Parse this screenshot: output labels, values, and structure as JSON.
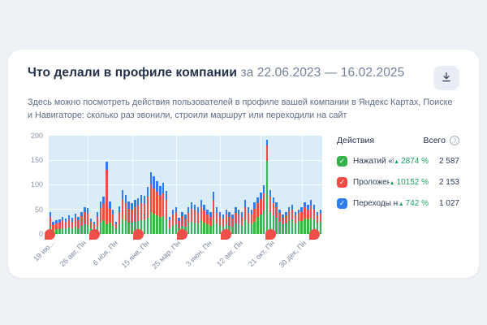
{
  "card": {
    "title": "Что делали в профиле компании",
    "date_range": "за 22.06.2023 — 16.02.2025",
    "subtitle_line1": "Здесь можно посмотреть действия пользователей в профиле вашей компании в Яндекс Картах, Поиске",
    "subtitle_line2": "и Навигаторе: сколько раз звонили, строили маршрут или переходили на сайт"
  },
  "legend": {
    "header_actions": "Действия",
    "header_total": "Всего",
    "items": [
      {
        "label": "Нажатий «Позвонить»",
        "percent": "2874 %",
        "total": "2 587",
        "color": "#36b14a"
      },
      {
        "label": "Проложено маршрутов",
        "percent": "10152 %",
        "total": "2 153",
        "color": "#ee4c45"
      },
      {
        "label": "Переходы на сайт",
        "percent": "742 %",
        "total": "1 027",
        "color": "#2d7df0"
      }
    ]
  },
  "colors": {
    "plot_background": "#daecf8",
    "marker_red": "#ef4f48",
    "trend_green": "#17a35f"
  },
  "chart_data": {
    "type": "bar",
    "stacked": true,
    "title": "",
    "xlabel": "",
    "ylabel": "",
    "ylim": [
      0,
      200
    ],
    "yticks": [
      0,
      50,
      100,
      150,
      200
    ],
    "grid": true,
    "legend_position": "right",
    "xtick_labels": [
      "19 ию...",
      "26 авг, Пн",
      "6 ноя, Пн",
      "15 янв, Пн",
      "25 мар, Пн",
      "3 июн, Пн",
      "12 авг, Пн",
      "21 окт, Пн",
      "30 дек, Пн"
    ],
    "xtick_indices": [
      0,
      10,
      20,
      30,
      40,
      50,
      60,
      70,
      80
    ],
    "vgrid_indices": [
      12,
      26,
      40,
      54,
      67,
      80
    ],
    "marker_indices": [
      0,
      14,
      28,
      42,
      56,
      70,
      84
    ],
    "series": [
      {
        "name": "Нажатий «Позвонить»",
        "color": "#3cb351",
        "values": [
          15,
          8,
          10,
          11,
          13,
          12,
          14,
          12,
          15,
          13,
          17,
          20,
          19,
          12,
          6,
          16,
          24,
          28,
          20,
          24,
          18,
          10,
          20,
          32,
          28,
          24,
          23,
          25,
          27,
          29,
          28,
          34,
          45,
          42,
          38,
          35,
          37,
          31,
          13,
          18,
          20,
          12,
          17,
          15,
          22,
          26,
          24,
          22,
          28,
          24,
          20,
          18,
          30,
          22,
          18,
          16,
          20,
          18,
          16,
          22,
          20,
          18,
          28,
          22,
          20,
          26,
          35,
          40,
          48,
          150,
          45,
          38,
          33,
          25,
          20,
          22,
          27,
          30,
          22,
          25,
          27,
          32,
          30,
          34,
          30,
          22,
          25
        ]
      },
      {
        "name": "Проложено маршрутов",
        "color": "#ee4c45",
        "values": [
          20,
          11,
          12,
          13,
          15,
          14,
          16,
          14,
          18,
          16,
          20,
          25,
          23,
          14,
          15,
          20,
          29,
          33,
          112,
          28,
          22,
          11,
          25,
          40,
          36,
          28,
          28,
          31,
          32,
          35,
          34,
          42,
          56,
          52,
          48,
          43,
          46,
          39,
          16,
          22,
          25,
          15,
          20,
          17,
          22,
          26,
          24,
          22,
          28,
          24,
          20,
          18,
          40,
          22,
          18,
          16,
          20,
          18,
          16,
          22,
          20,
          18,
          28,
          22,
          20,
          26,
          28,
          31,
          36,
          30,
          32,
          26,
          23,
          18,
          14,
          16,
          20,
          21,
          16,
          18,
          19,
          23,
          21,
          25,
          21,
          16,
          17
        ]
      },
      {
        "name": "Переходы на сайт",
        "color": "#2d7df0",
        "values": [
          10,
          6,
          6,
          6,
          7,
          6,
          8,
          7,
          9,
          7,
          9,
          11,
          11,
          6,
          5,
          10,
          13,
          15,
          15,
          14,
          10,
          5,
          12,
          18,
          16,
          14,
          13,
          14,
          15,
          16,
          16,
          20,
          26,
          24,
          22,
          20,
          21,
          18,
          7,
          10,
          11,
          7,
          9,
          8,
          11,
          13,
          12,
          11,
          14,
          12,
          10,
          9,
          17,
          11,
          9,
          8,
          10,
          9,
          8,
          11,
          10,
          9,
          14,
          11,
          10,
          13,
          12,
          14,
          16,
          12,
          13,
          11,
          9,
          7,
          6,
          7,
          8,
          9,
          7,
          7,
          9,
          10,
          9,
          11,
          9,
          7,
          8
        ]
      }
    ]
  }
}
